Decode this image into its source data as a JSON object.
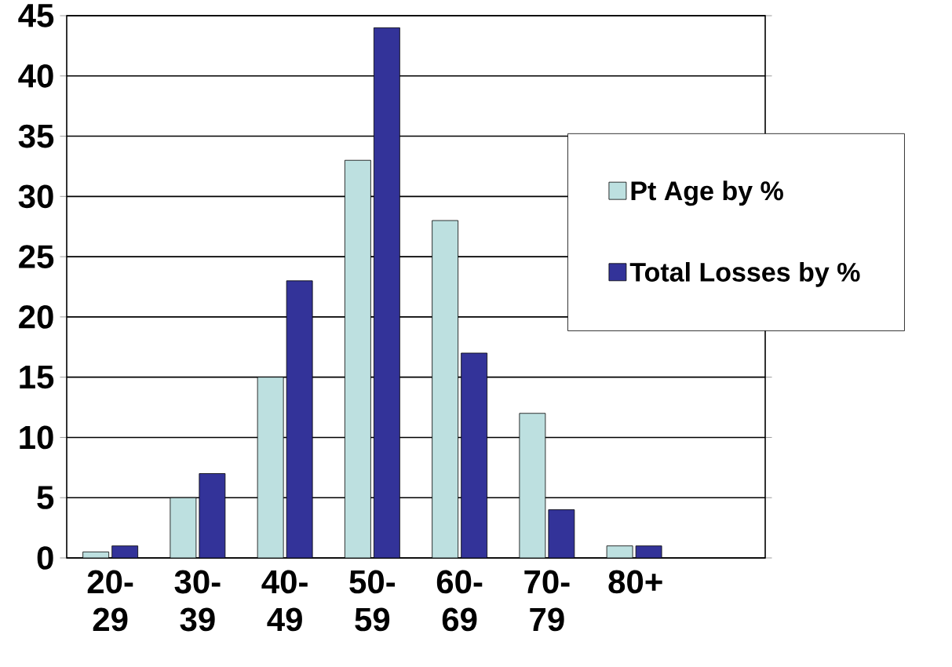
{
  "chart_data": {
    "type": "bar",
    "categories": [
      "20-29",
      "30-39",
      "40-49",
      "50-59",
      "60-69",
      "70-79",
      "80+",
      null
    ],
    "series": [
      {
        "name": "Pt Age by %",
        "color": "#bde0e0",
        "values": [
          0.5,
          5,
          15,
          33,
          28,
          12,
          1,
          null
        ]
      },
      {
        "name": "Total Losses by %",
        "color": "#333399",
        "values": [
          1,
          7,
          23,
          44,
          17,
          4,
          1,
          null
        ]
      }
    ],
    "ylim": [
      0,
      45
    ],
    "yticks": [
      0,
      5,
      10,
      15,
      20,
      25,
      30,
      35,
      40,
      45
    ],
    "grid": "y",
    "legend": "right"
  }
}
